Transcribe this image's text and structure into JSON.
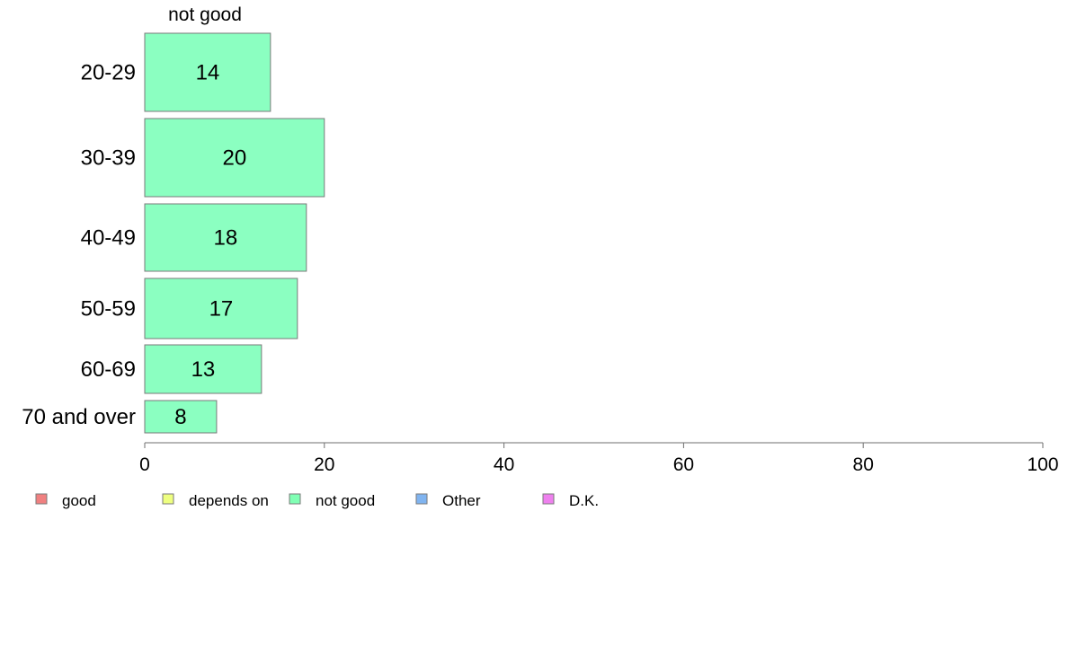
{
  "chart_data": {
    "type": "bar",
    "orientation": "horizontal",
    "column_label": "not good",
    "categories": [
      "20-29",
      "30-39",
      "40-49",
      "50-59",
      "60-69",
      "70 and over"
    ],
    "series": [
      {
        "name": "not good",
        "values": [
          14,
          20,
          18,
          17,
          13,
          8
        ],
        "color": "#8bffc1"
      }
    ],
    "xlim": [
      0,
      100
    ],
    "xticks": [
      "0",
      "20",
      "40",
      "60",
      "80",
      "100"
    ],
    "grid": false,
    "legend": {
      "position": "bottom-left",
      "items": [
        {
          "label": "good",
          "color": "#f08080"
        },
        {
          "label": "depends on",
          "color": "#eeff80"
        },
        {
          "label": "not good",
          "color": "#80ffb4"
        },
        {
          "label": "Other",
          "color": "#80b4f0"
        },
        {
          "label": "D.K.",
          "color": "#ee80ee"
        }
      ]
    }
  }
}
